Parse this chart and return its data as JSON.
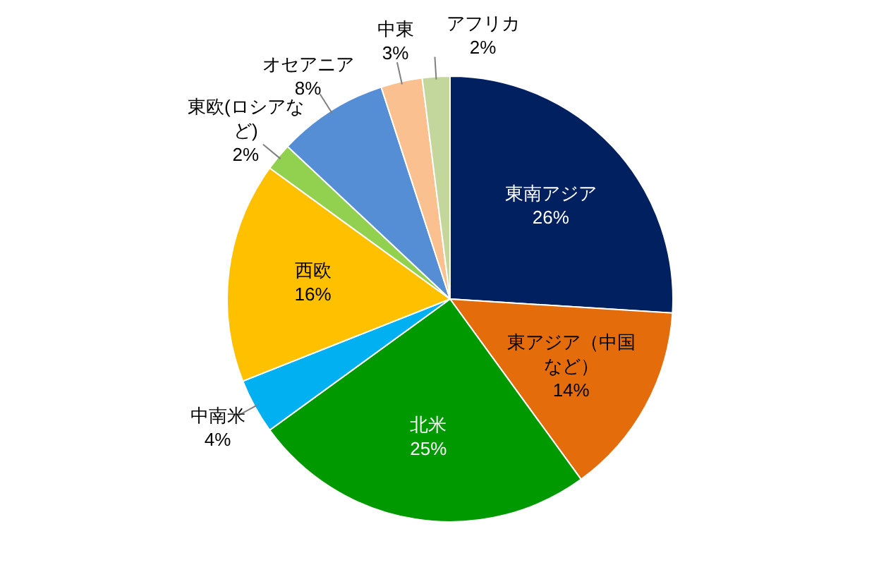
{
  "chart_data": {
    "type": "pie",
    "categories": [
      "東南アジア",
      "東アジア（中国など）",
      "北米",
      "中南米",
      "西欧",
      "東欧(ロシアなど)",
      "オセアニア",
      "中東",
      "アフリカ"
    ],
    "values": [
      26,
      14,
      25,
      4,
      16,
      2,
      8,
      3,
      2
    ],
    "value_labels": [
      "26%",
      "14%",
      "25%",
      "4%",
      "16%",
      "2%",
      "8%",
      "3%",
      "2%"
    ],
    "colors": [
      "#002060",
      "#e46c0a",
      "#009900",
      "#00b0f0",
      "#ffc000",
      "#92d050",
      "#558ed5",
      "#fac090",
      "#c3d69b"
    ]
  }
}
